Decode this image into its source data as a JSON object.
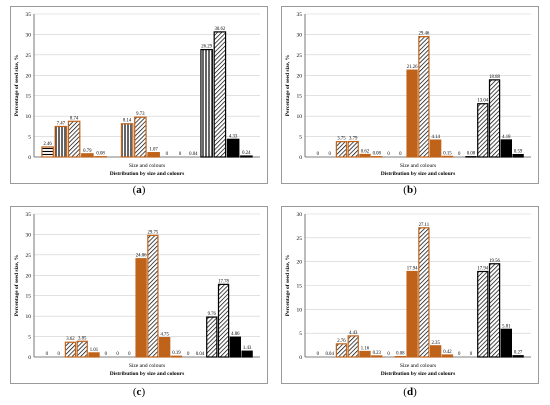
{
  "styles": {
    "orange": "#c0631a",
    "black": "#000000",
    "grid": "#cfcfcf",
    "frame": "#9a9a9a"
  },
  "panels": [
    {
      "paren_open": "(",
      "label": "a",
      "paren_close": ")"
    },
    {
      "paren_open": "(",
      "label": "b",
      "paren_close": ")"
    },
    {
      "paren_open": "(",
      "label": "c",
      "paren_close": ")"
    },
    {
      "paren_open": "(",
      "label": "d",
      "paren_close": ")"
    }
  ],
  "chart_data": [
    {
      "type": "bar",
      "ylabel": "Percentage of seed size, %",
      "xlabel": "Size and colours",
      "xsubtitle": "Distribution by size and colours",
      "ylim": [
        0,
        35
      ],
      "yticks": [
        "0",
        "5",
        "10",
        "15",
        "20",
        "25",
        "30",
        "35"
      ],
      "grid": true,
      "bars": [
        {
          "v": 2.46,
          "label": "2.46",
          "c": "orange",
          "p": "stripe"
        },
        {
          "v": 7.47,
          "label": "7.47",
          "c": "orange",
          "p": "vline"
        },
        {
          "v": 8.74,
          "label": "8.74",
          "c": "orange",
          "p": "diag"
        },
        {
          "v": 0.79,
          "label": "0.79",
          "c": "orange",
          "p": "solid"
        },
        {
          "v": 0.08,
          "label": "0.08",
          "c": "orange",
          "p": "solid"
        },
        {
          "v": 0,
          "label": "",
          "c": "orange",
          "p": "solid"
        },
        {
          "v": 8.14,
          "label": "8.14",
          "c": "orange",
          "p": "vline"
        },
        {
          "v": 9.73,
          "label": "9.73",
          "c": "orange",
          "p": "diag"
        },
        {
          "v": 1.07,
          "label": "1.07",
          "c": "orange",
          "p": "solid"
        },
        {
          "v": 0,
          "label": "0",
          "c": "orange",
          "p": "solid"
        },
        {
          "v": 0,
          "label": "0",
          "c": "black",
          "p": "solid"
        },
        {
          "v": 0.04,
          "label": "0.04",
          "c": "black",
          "p": "solid"
        },
        {
          "v": 26.29,
          "label": "26.29",
          "c": "black",
          "p": "vline"
        },
        {
          "v": 30.62,
          "label": "30.62",
          "c": "black",
          "p": "diag"
        },
        {
          "v": 4.33,
          "label": "4.33",
          "c": "black",
          "p": "solid"
        },
        {
          "v": 0.24,
          "label": "0.24",
          "c": "black",
          "p": "solid"
        }
      ]
    },
    {
      "type": "bar",
      "ylabel": "Percentage of seed size, %",
      "xlabel": "Size and colours",
      "xsubtitle": "Distribution by size and colours",
      "ylim": [
        0,
        35
      ],
      "yticks": [
        "0",
        "5",
        "10",
        "15",
        "20",
        "25",
        "30",
        "35"
      ],
      "grid": true,
      "bars": [
        {
          "v": 0,
          "label": "0",
          "c": "orange",
          "p": "solid"
        },
        {
          "v": 0,
          "label": "0",
          "c": "orange",
          "p": "solid"
        },
        {
          "v": 3.75,
          "label": "3.75",
          "c": "orange",
          "p": "diag"
        },
        {
          "v": 3.79,
          "label": "3.79",
          "c": "orange",
          "p": "diag"
        },
        {
          "v": 0.62,
          "label": "0.62",
          "c": "orange",
          "p": "solid"
        },
        {
          "v": 0.08,
          "label": "0.08",
          "c": "orange",
          "p": "solid"
        },
        {
          "v": 0,
          "label": "0",
          "c": "orange",
          "p": "solid"
        },
        {
          "v": 0,
          "label": "0",
          "c": "orange",
          "p": "solid"
        },
        {
          "v": 21.26,
          "label": "21.26",
          "c": "orange",
          "p": "solid"
        },
        {
          "v": 29.46,
          "label": "29.46",
          "c": "orange",
          "p": "diag"
        },
        {
          "v": 4.14,
          "label": "4.14",
          "c": "orange",
          "p": "solid"
        },
        {
          "v": 0.15,
          "label": "0.15",
          "c": "orange",
          "p": "solid"
        },
        {
          "v": 0,
          "label": "0",
          "c": "black",
          "p": "solid"
        },
        {
          "v": 0.08,
          "label": "0.08",
          "c": "black",
          "p": "solid"
        },
        {
          "v": 13.04,
          "label": "13.04",
          "c": "black",
          "p": "diag"
        },
        {
          "v": 18.88,
          "label": "18.88",
          "c": "black",
          "p": "diag"
        },
        {
          "v": 4.18,
          "label": "4.18",
          "c": "black",
          "p": "solid"
        },
        {
          "v": 0.59,
          "label": "0.59",
          "c": "black",
          "p": "solid"
        }
      ]
    },
    {
      "type": "bar",
      "ylabel": "Percentage of seed size, %",
      "xlabel": "Size and colours",
      "xsubtitle": "Distribution by size and colours",
      "ylim": [
        0,
        35
      ],
      "yticks": [
        "0",
        "5",
        "10",
        "15",
        "20",
        "25",
        "30",
        "35"
      ],
      "grid": true,
      "bars": [
        {
          "v": 0,
          "label": "0",
          "c": "orange",
          "p": "solid"
        },
        {
          "v": 0,
          "label": "0",
          "c": "orange",
          "p": "solid"
        },
        {
          "v": 3.62,
          "label": "3.62",
          "c": "orange",
          "p": "diag"
        },
        {
          "v": 3.85,
          "label": "3.85",
          "c": "orange",
          "p": "diag"
        },
        {
          "v": 1.01,
          "label": "1.01",
          "c": "orange",
          "p": "solid"
        },
        {
          "v": 0,
          "label": "0",
          "c": "orange",
          "p": "solid"
        },
        {
          "v": 0,
          "label": "0",
          "c": "orange",
          "p": "solid"
        },
        {
          "v": 0,
          "label": "0",
          "c": "orange",
          "p": "solid"
        },
        {
          "v": 24.06,
          "label": "24.06",
          "c": "orange",
          "p": "solid"
        },
        {
          "v": 29.75,
          "label": "29.75",
          "c": "orange",
          "p": "diag"
        },
        {
          "v": 4.75,
          "label": "4.75",
          "c": "orange",
          "p": "solid"
        },
        {
          "v": 0.19,
          "label": "0.19",
          "c": "orange",
          "p": "solid"
        },
        {
          "v": 0,
          "label": "0",
          "c": "black",
          "p": "solid"
        },
        {
          "v": 0.04,
          "label": "0.04",
          "c": "black",
          "p": "solid"
        },
        {
          "v": 9.76,
          "label": "9.76",
          "c": "black",
          "p": "diag"
        },
        {
          "v": 17.78,
          "label": "17.78",
          "c": "black",
          "p": "diag"
        },
        {
          "v": 4.86,
          "label": "4.86",
          "c": "black",
          "p": "solid"
        },
        {
          "v": 1.43,
          "label": "1.43",
          "c": "black",
          "p": "solid"
        }
      ]
    },
    {
      "type": "bar",
      "ylabel": "Percentage of seed size, %",
      "xlabel": "Size and colours",
      "xsubtitle": "Distribution by size and colours",
      "ylim": [
        0,
        30
      ],
      "yticks": [
        "0",
        "5",
        "10",
        "15",
        "20",
        "25",
        "30"
      ],
      "grid": true,
      "bars": [
        {
          "v": 0,
          "label": "0",
          "c": "orange",
          "p": "solid"
        },
        {
          "v": 0.04,
          "label": "0.04",
          "c": "orange",
          "p": "solid"
        },
        {
          "v": 2.76,
          "label": "2.76",
          "c": "orange",
          "p": "diag"
        },
        {
          "v": 4.43,
          "label": "4.43",
          "c": "orange",
          "p": "diag"
        },
        {
          "v": 1.16,
          "label": "1.16",
          "c": "orange",
          "p": "solid"
        },
        {
          "v": 0.23,
          "label": "0.23",
          "c": "orange",
          "p": "solid"
        },
        {
          "v": 0,
          "label": "0",
          "c": "orange",
          "p": "solid"
        },
        {
          "v": 0.08,
          "label": "0.08",
          "c": "orange",
          "p": "solid"
        },
        {
          "v": 17.94,
          "label": "17.94",
          "c": "orange",
          "p": "solid"
        },
        {
          "v": 27.11,
          "label": "27.11",
          "c": "orange",
          "p": "diag"
        },
        {
          "v": 2.35,
          "label": "2.35",
          "c": "orange",
          "p": "solid"
        },
        {
          "v": 0.42,
          "label": "0.42",
          "c": "orange",
          "p": "solid"
        },
        {
          "v": 0,
          "label": "0",
          "c": "black",
          "p": "solid"
        },
        {
          "v": 0,
          "label": "0",
          "c": "black",
          "p": "solid"
        },
        {
          "v": 17.94,
          "label": "17.94",
          "c": "black",
          "p": "diag"
        },
        {
          "v": 19.56,
          "label": "19.56",
          "c": "black",
          "p": "diag"
        },
        {
          "v": 5.81,
          "label": "5.81",
          "c": "black",
          "p": "solid"
        },
        {
          "v": 0.27,
          "label": "0.27",
          "c": "black",
          "p": "solid"
        }
      ]
    }
  ]
}
